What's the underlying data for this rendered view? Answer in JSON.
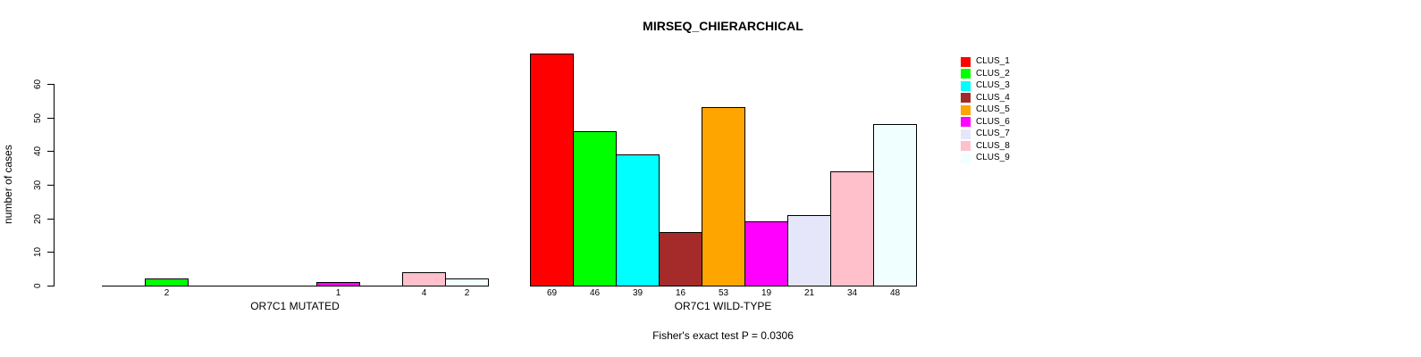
{
  "chart_data": {
    "type": "bar",
    "title": "MIRSEQ_CHIERARCHICAL",
    "ylabel": "number of cases",
    "ylim": [
      0,
      60
    ],
    "yticks": [
      0,
      10,
      20,
      30,
      40,
      50,
      60
    ],
    "grid": false,
    "legend_position": "right-outside",
    "bar_borders": "#000000",
    "value_label_rule": "value shown below each bar; zero-height bars show no bar and no label",
    "categories": [
      "CLUS_1",
      "CLUS_2",
      "CLUS_3",
      "CLUS_4",
      "CLUS_5",
      "CLUS_6",
      "CLUS_7",
      "CLUS_8",
      "CLUS_9"
    ],
    "colors": [
      "#FF0000",
      "#00FF00",
      "#00FFFF",
      "#A52A2A",
      "#FFA500",
      "#FF00FF",
      "#E6E6FA",
      "#FFC0CB",
      "#F0FFFF"
    ],
    "groups": [
      {
        "label": "OR7C1 MUTATED",
        "values": [
          0,
          2,
          0,
          0,
          0,
          1,
          0,
          4,
          2
        ]
      },
      {
        "label": "OR7C1 WILD-TYPE",
        "values": [
          69,
          46,
          39,
          16,
          53,
          19,
          21,
          34,
          48
        ]
      }
    ],
    "annotation": "Fisher's exact test P = 0.0306"
  }
}
